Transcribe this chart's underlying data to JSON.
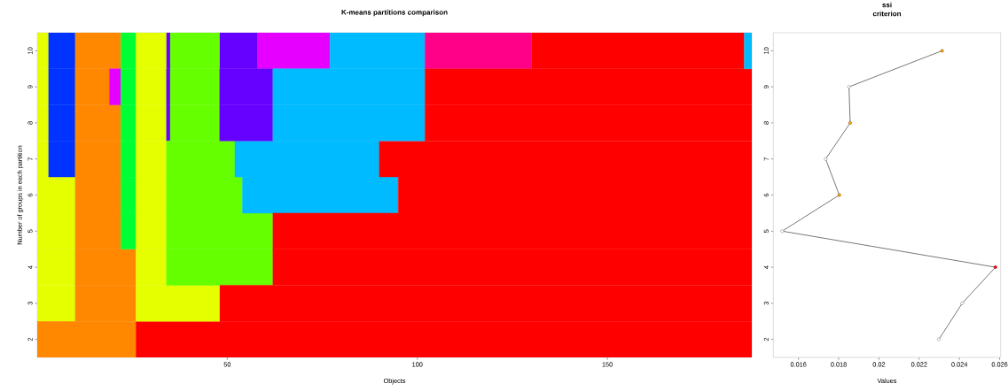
{
  "chart_data": [
    {
      "type": "bar",
      "orientation": "horizontal",
      "stacked": true,
      "title": "K-means partitions comparison",
      "xlabel": "Objects",
      "ylabel": "Number of groups in each partition",
      "categories": [
        "10",
        "9",
        "8",
        "7",
        "6",
        "5",
        "4",
        "3",
        "2"
      ],
      "xlim": [
        0,
        188
      ],
      "xticks": [
        50,
        100,
        150
      ],
      "series": [
        {
          "values": [
            3,
            3,
            3,
            3,
            10,
            10,
            10,
            10,
            26
          ],
          "colors": [
            "#e6ff00",
            "#e6ff00",
            "#e6ff00",
            "#e6ff00",
            "#e6ff00",
            "#e6ff00",
            "#e6ff00",
            "#e6ff00",
            "#ff8800"
          ]
        },
        {
          "values": [
            7,
            7,
            7,
            7,
            12,
            12,
            16,
            16,
            162
          ],
          "colors": [
            "#0033ff",
            "#0033ff",
            "#0033ff",
            "#0033ff",
            "#ff8800",
            "#ff8800",
            "#ff8800",
            "#ff8800",
            "#ff0000"
          ]
        },
        {
          "values": [
            12,
            9,
            12,
            12,
            4,
            4,
            8,
            22,
            null
          ],
          "colors": [
            "#ff8800",
            "#ff8800",
            "#ff8800",
            "#ff8800",
            "#00ff33",
            "#00ff33",
            "#e6ff00",
            "#e6ff00",
            null
          ]
        },
        {
          "values": [
            4,
            3,
            4,
            4,
            8,
            8,
            28,
            140,
            null
          ],
          "colors": [
            "#00ff33",
            "#e600ff",
            "#00ff33",
            "#00ff33",
            "#e6ff00",
            "#e6ff00",
            "#66ff00",
            "#ff0000",
            null
          ]
        },
        {
          "values": [
            8,
            4,
            8,
            8,
            20,
            28,
            126,
            null,
            null
          ],
          "colors": [
            "#e6ff00",
            "#00ff33",
            "#e6ff00",
            "#e6ff00",
            "#66ff00",
            "#66ff00",
            "#ff0000",
            null,
            null
          ]
        },
        {
          "values": [
            1,
            8,
            1,
            18,
            41,
            126,
            null,
            null,
            null
          ],
          "colors": [
            "#6600ff",
            "#e6ff00",
            "#6600ff",
            "#66ff00",
            "#00bbff",
            "#ff0000",
            null,
            null,
            null
          ]
        },
        {
          "values": [
            13,
            1,
            13,
            38,
            93,
            null,
            null,
            null,
            null
          ],
          "colors": [
            "#66ff00",
            "#6600ff",
            "#66ff00",
            "#00bbff",
            "#ff0000",
            null,
            null,
            null,
            null
          ]
        },
        {
          "values": [
            10,
            13,
            14,
            98,
            null,
            null,
            null,
            null,
            null
          ],
          "colors": [
            "#6600ff",
            "#66ff00",
            "#6600ff",
            "#ff0000",
            null,
            null,
            null,
            null,
            null
          ]
        },
        {
          "values": [
            19,
            14,
            40,
            null,
            null,
            null,
            null,
            null,
            null
          ],
          "colors": [
            "#e600ff",
            "#6600ff",
            "#00bbff",
            null,
            null,
            null,
            null,
            null,
            null
          ]
        },
        {
          "values": [
            25,
            40,
            86,
            null,
            null,
            null,
            null,
            null,
            null
          ],
          "colors": [
            "#00bbff",
            "#00bbff",
            "#ff0000",
            null,
            null,
            null,
            null,
            null,
            null
          ]
        },
        {
          "values": [
            28,
            86,
            null,
            null,
            null,
            null,
            null,
            null,
            null
          ],
          "colors": [
            "#ff0088",
            "#ff0000",
            null,
            null,
            null,
            null,
            null,
            null,
            null
          ]
        },
        {
          "values": [
            56,
            null,
            null,
            null,
            null,
            null,
            null,
            null,
            null
          ],
          "colors": [
            "#ff0000",
            null,
            null,
            null,
            null,
            null,
            null,
            null,
            null
          ]
        },
        {
          "values": [
            2,
            null,
            null,
            null,
            null,
            null,
            null,
            null,
            null
          ],
          "colors": [
            "#00bbff",
            null,
            null,
            null,
            null,
            null,
            null,
            null,
            null
          ]
        }
      ]
    },
    {
      "type": "line",
      "title": "ssi",
      "subtitle": "criterion",
      "xlabel": "Values",
      "x": [
        0.02298,
        0.02414,
        0.02579,
        0.01519,
        0.01803,
        0.01735,
        0.01857,
        0.01851,
        0.02314
      ],
      "values": [
        2,
        3,
        4,
        5,
        6,
        7,
        8,
        9,
        10
      ],
      "color": "#000000",
      "colors": [
        "#ffffff",
        "#ffffff",
        "#ff0000",
        "#ffffff",
        "#ffa500",
        "#ffffff",
        "#ffa500",
        "#ffffff",
        "#ffa500"
      ],
      "marker": "circle",
      "xlim": [
        0.01475,
        0.02605
      ],
      "xticks": [
        0.016,
        0.018,
        0.02,
        0.022,
        0.024,
        0.026
      ],
      "ylim": [
        1.5,
        10.5
      ],
      "yticks": [
        2,
        3,
        4,
        5,
        6,
        7,
        8,
        9,
        10
      ]
    }
  ]
}
